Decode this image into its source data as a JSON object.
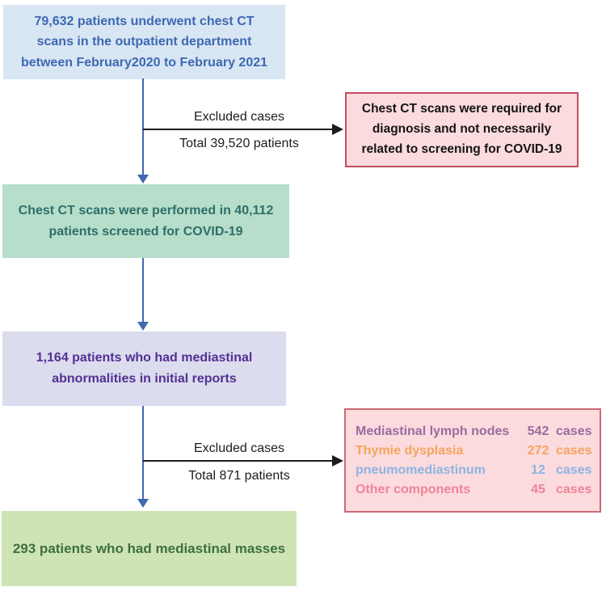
{
  "boxes": {
    "initial": {
      "text": "79,632 patients underwent chest CT\nscans in the outpatient department\nbetween February2020 to February 2021"
    },
    "excluded_reason": {
      "text": "Chest CT scans were required for\ndiagnosis and not necessarily\nrelated to screening for COVID-19"
    },
    "screened": {
      "text": "Chest CT scans were performed in 40,112\npatients screened for COVID-19"
    },
    "abnormalities": {
      "text": "1,164 patients who had mediastinal\nabnormalities in initial reports"
    },
    "final": {
      "text": "293 patients who had mediastinal masses"
    }
  },
  "branches": {
    "first": {
      "label": "Excluded cases",
      "total": "Total 39,520 patients"
    },
    "second": {
      "label": "Excluded cases",
      "total": "Total 871 patients"
    }
  },
  "excluded_breakdown": {
    "rows": [
      {
        "label": "Mediastinal lymph nodes",
        "value": "542",
        "unit": "cases",
        "color": "#9c6b9f"
      },
      {
        "label": "Thymie dysplasia",
        "value": "272",
        "unit": "cases",
        "color": "#f5a55e"
      },
      {
        "label": "pneumomediastinum",
        "value": "12",
        "unit": "cases",
        "color": "#8db4e2"
      },
      {
        "label": "Other components",
        "value": "45",
        "unit": "cases",
        "color": "#ee8496"
      }
    ]
  },
  "colors": {
    "blue_bg": "#d8e6f4",
    "blue_text": "#3e68b1",
    "teal_bg": "#b6decb",
    "teal_text": "#2e6f68",
    "purple_bg": "#dbdcee",
    "purple_text": "#533092",
    "green_bg": "#cfe4b5",
    "green_text": "#3e7040",
    "pink_bg": "#fbdbde",
    "pink1_border": "#c34e60",
    "pink2_border": "#cb6a72",
    "pink1_text": "#141414",
    "arrow_blue": "#4169af",
    "arrow_black": "#1c1c1c",
    "branch_text": "#1c1c1c"
  }
}
